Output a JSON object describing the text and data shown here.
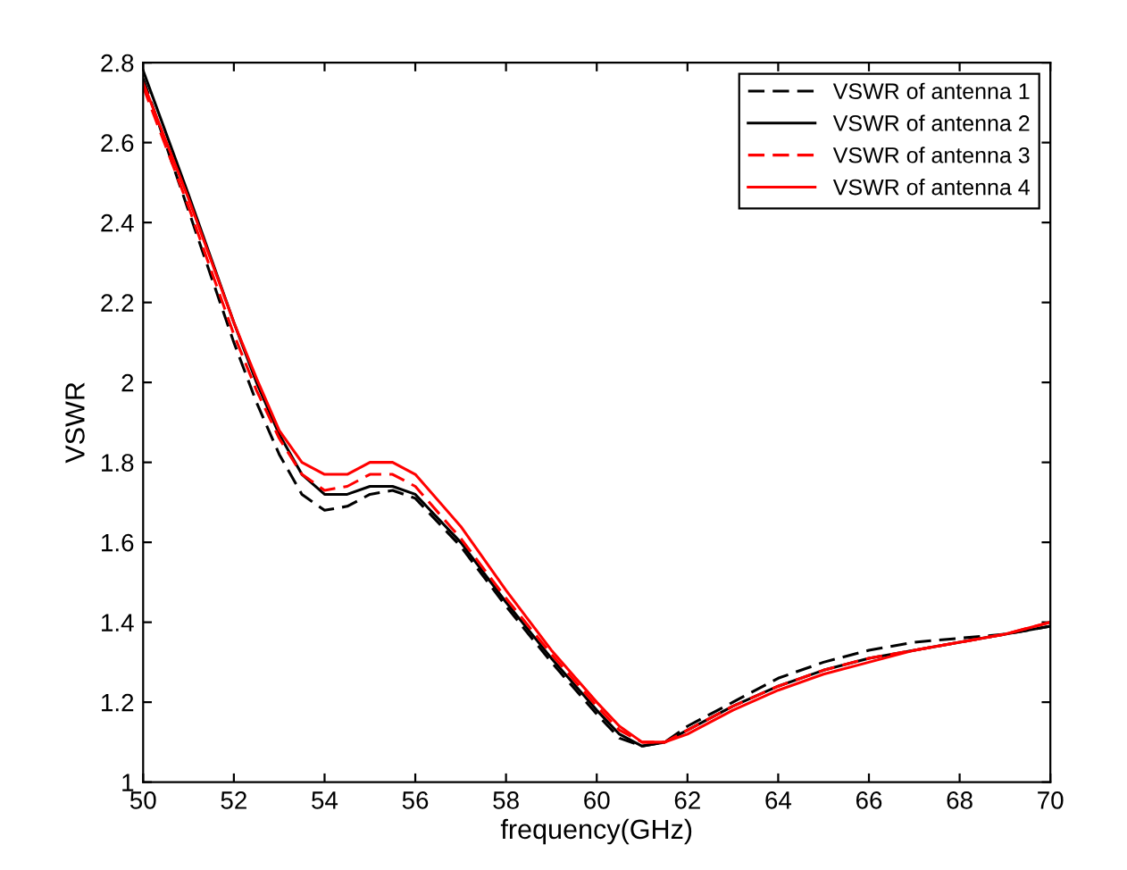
{
  "chart_data": {
    "type": "line",
    "xlabel": "frequency(GHz)",
    "ylabel": "VSWR",
    "x": [
      50,
      51,
      52,
      52.5,
      53,
      53.5,
      54,
      54.5,
      55,
      55.5,
      56,
      57,
      58,
      59,
      60,
      60.5,
      61,
      61.5,
      62,
      63,
      64,
      65,
      66,
      67,
      68,
      69,
      70
    ],
    "series": [
      {
        "name": "VSWR of antenna 1",
        "color": "#000000",
        "line_style": "dashed",
        "values": [
          2.76,
          2.43,
          2.1,
          1.95,
          1.82,
          1.72,
          1.68,
          1.69,
          1.72,
          1.73,
          1.71,
          1.59,
          1.44,
          1.3,
          1.17,
          1.11,
          1.09,
          1.1,
          1.14,
          1.2,
          1.26,
          1.3,
          1.33,
          1.35,
          1.36,
          1.37,
          1.39
        ]
      },
      {
        "name": "VSWR of antenna 2",
        "color": "#000000",
        "line_style": "solid",
        "values": [
          2.78,
          2.47,
          2.15,
          2.0,
          1.87,
          1.77,
          1.72,
          1.72,
          1.74,
          1.74,
          1.72,
          1.6,
          1.45,
          1.31,
          1.18,
          1.12,
          1.09,
          1.1,
          1.13,
          1.19,
          1.24,
          1.28,
          1.31,
          1.33,
          1.35,
          1.37,
          1.39
        ]
      },
      {
        "name": "VSWR of antenna 3",
        "color": "#ff0000",
        "line_style": "dashed",
        "values": [
          2.74,
          2.44,
          2.12,
          1.98,
          1.86,
          1.77,
          1.73,
          1.74,
          1.77,
          1.77,
          1.74,
          1.61,
          1.46,
          1.32,
          1.19,
          1.13,
          1.1,
          1.1,
          1.13,
          1.19,
          1.24,
          1.28,
          1.31,
          1.33,
          1.35,
          1.37,
          1.4
        ]
      },
      {
        "name": "VSWR of antenna 4",
        "color": "#ff0000",
        "line_style": "solid",
        "values": [
          2.75,
          2.46,
          2.15,
          2.01,
          1.88,
          1.8,
          1.77,
          1.77,
          1.8,
          1.8,
          1.77,
          1.64,
          1.48,
          1.33,
          1.2,
          1.14,
          1.1,
          1.1,
          1.12,
          1.18,
          1.23,
          1.27,
          1.3,
          1.33,
          1.35,
          1.37,
          1.4
        ]
      }
    ],
    "xlim": [
      50,
      70
    ],
    "xticks": [
      50,
      52,
      54,
      56,
      58,
      60,
      62,
      64,
      66,
      68,
      70
    ],
    "ylim": [
      1,
      2.8
    ],
    "yticks": [
      1,
      1.2,
      1.4,
      1.6,
      1.8,
      2,
      2.2,
      2.4,
      2.6,
      2.8
    ],
    "grid": false,
    "legend": "top right"
  }
}
